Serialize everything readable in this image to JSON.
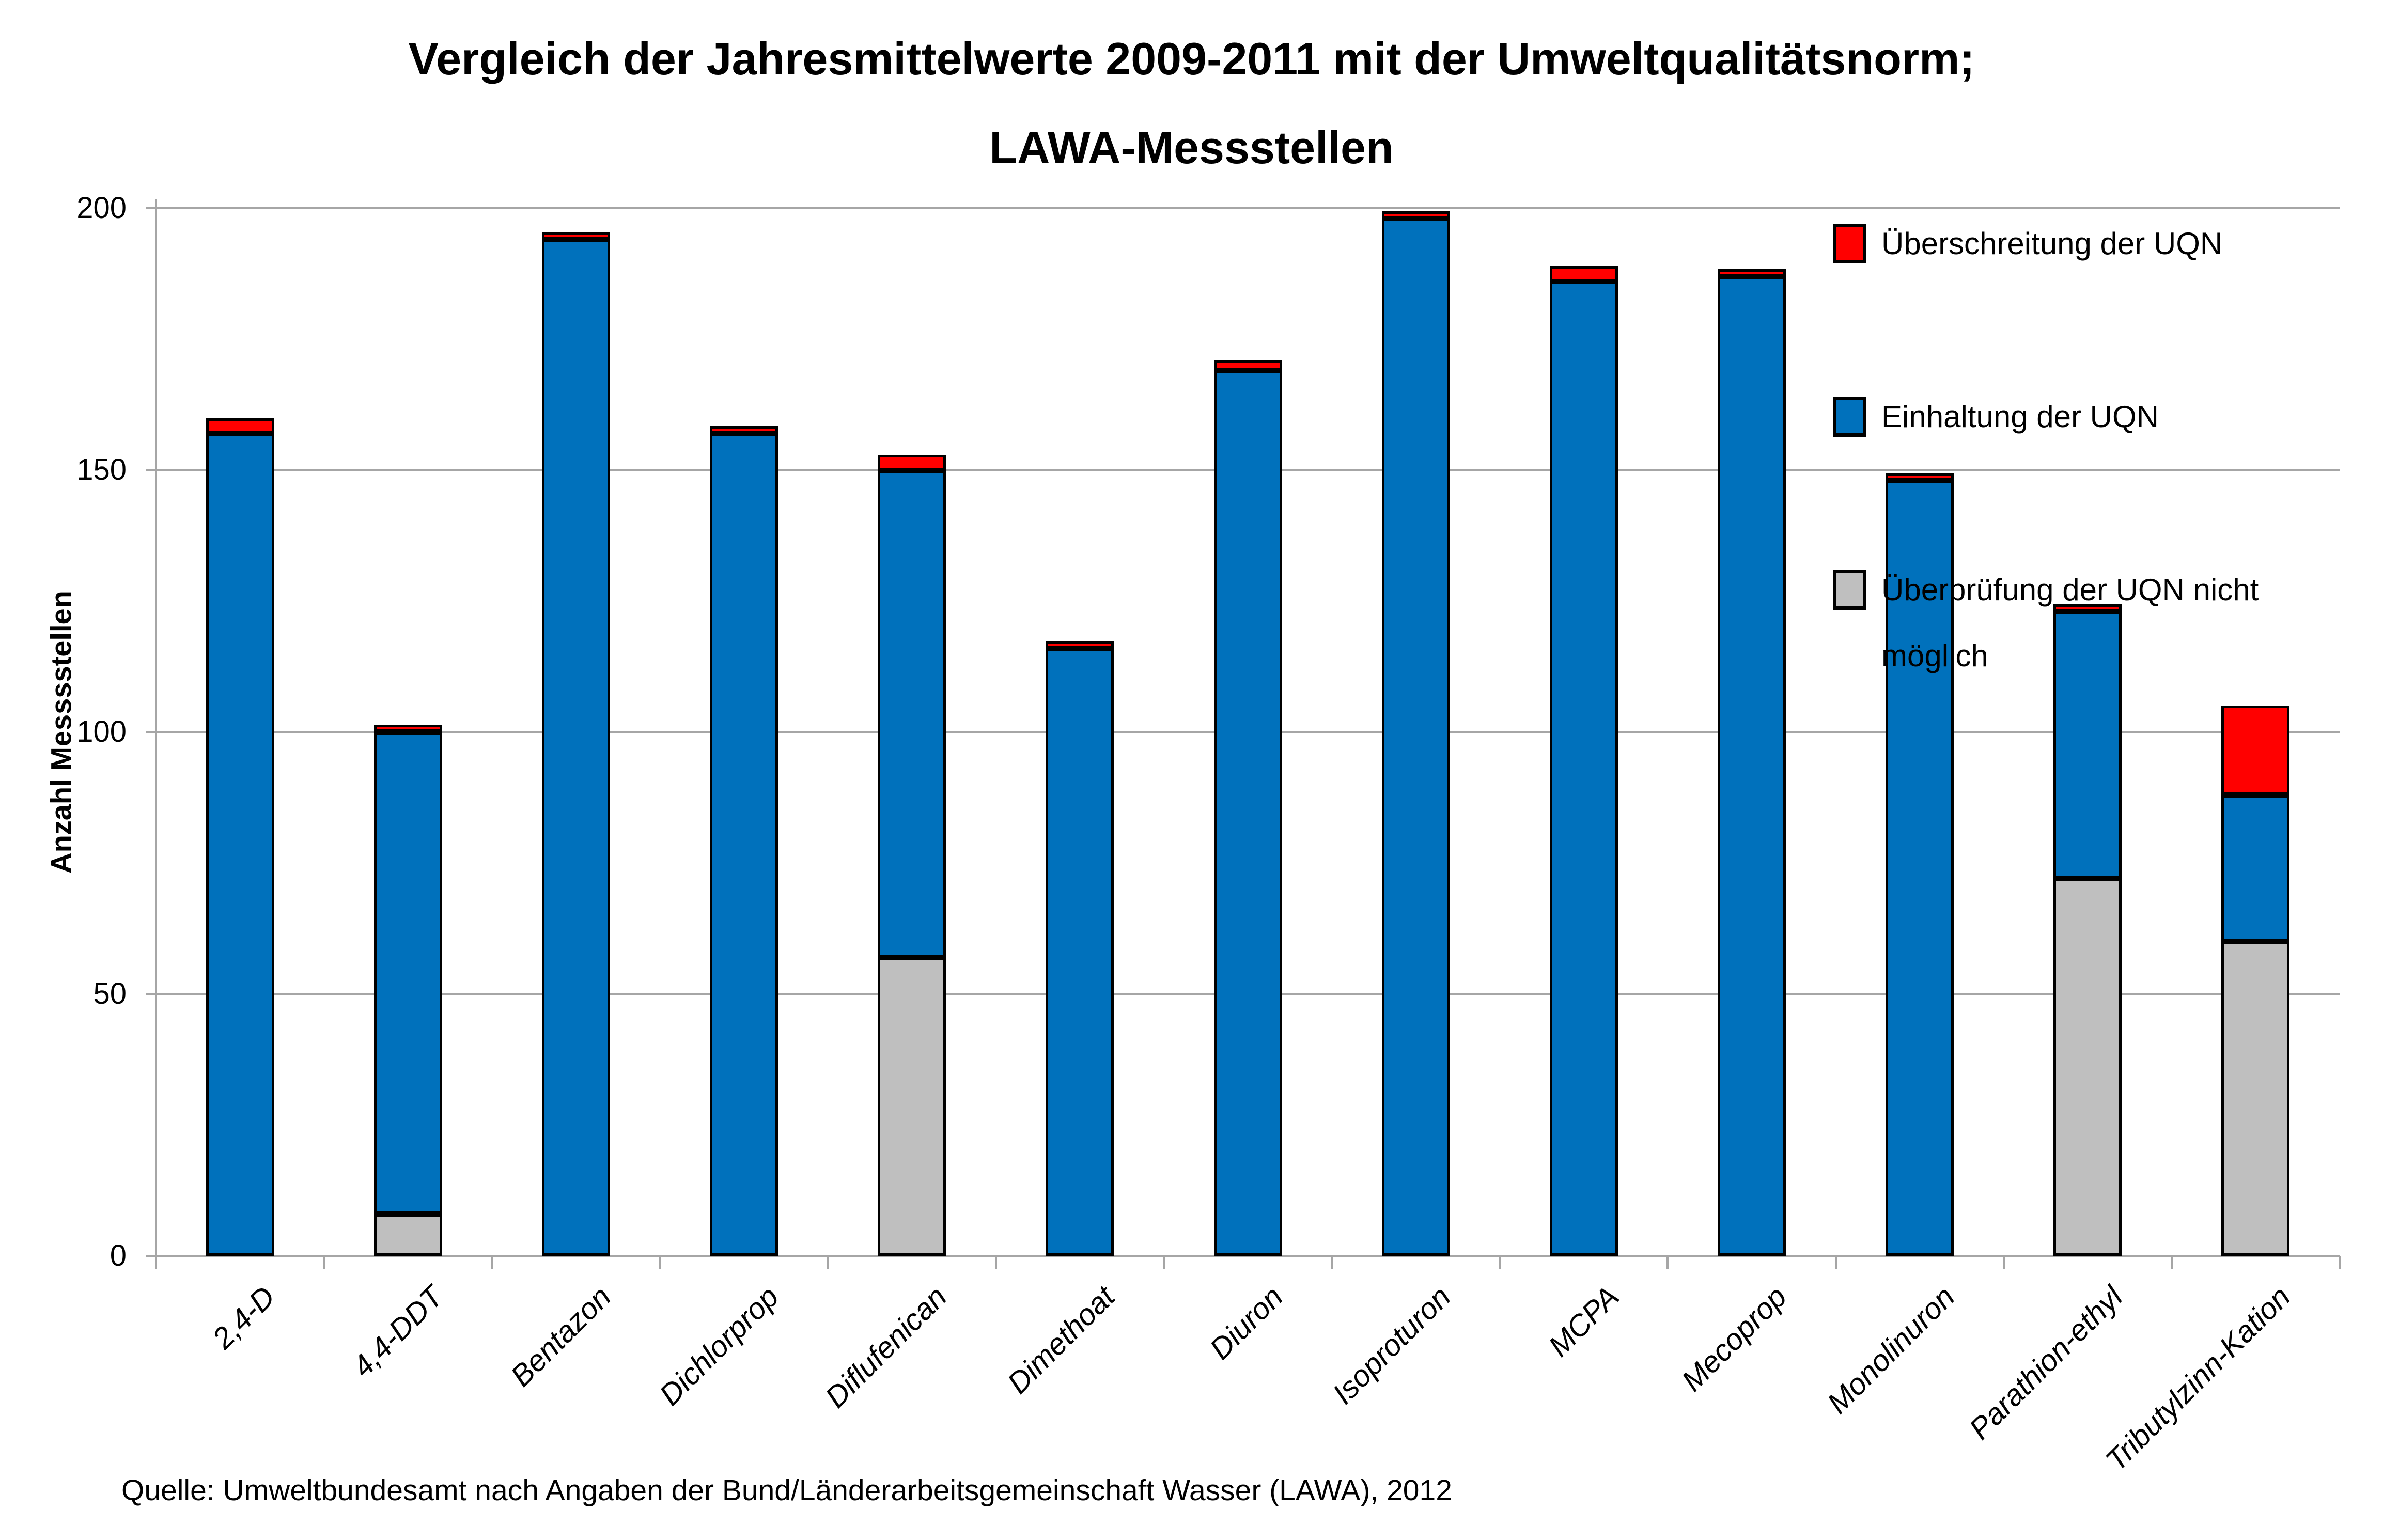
{
  "title": {
    "line1": "Vergleich der Jahresmittelwerte 2009-2011 mit der Umweltqualitätsnorm;",
    "line2": "LAWA-Messstellen"
  },
  "y_axis": {
    "label": "Anzahl Messsstellen",
    "ticks": [
      0,
      50,
      100,
      150,
      200
    ]
  },
  "legend": {
    "items": [
      {
        "label": "Überschreitung der UQN",
        "color_key": "red"
      },
      {
        "label": "Einhaltung der UQN",
        "color_key": "blue"
      },
      {
        "label": "Überprüfung der UQN nicht möglich",
        "color_key": "gray"
      }
    ]
  },
  "source": "Quelle: Umweltbundesamt nach Angaben der Bund/Länderarbeitsgemeinschaft Wasser (LAWA), 2012",
  "colors": {
    "red": "#FF0000",
    "blue": "#0071BC",
    "gray": "#BFBFBF",
    "grid": "#A6A6A6",
    "border": "#000000"
  },
  "chart_data": {
    "type": "bar",
    "stacked": true,
    "title": "Vergleich der Jahresmittelwerte 2009-2011 mit der Umweltqualitätsnorm; LAWA-Messstellen",
    "xlabel": "",
    "ylabel": "Anzahl Messsstellen",
    "ylim": [
      0,
      200
    ],
    "grid": true,
    "legend_position": "right-inside",
    "categories": [
      "2,4-D",
      "4,4-DDT",
      "Bentazon",
      "Dichlorprop",
      "Diflufenican",
      "Dimethoat",
      "Diuron",
      "Isoproturon",
      "MCPA",
      "Mecoprop",
      "Monolinuron",
      "Parathion-ethyl",
      "Tributylzinn-Kation"
    ],
    "series": [
      {
        "name": "Überprüfung der UQN nicht möglich",
        "color_key": "gray",
        "values": [
          0,
          8,
          0,
          0,
          57,
          0,
          0,
          0,
          0,
          0,
          0,
          72,
          60
        ]
      },
      {
        "name": "Einhaltung der UQN",
        "color_key": "blue",
        "values": [
          157,
          92,
          194,
          157,
          93,
          116,
          169,
          198,
          186,
          187,
          148,
          51,
          28
        ]
      },
      {
        "name": "Überschreitung der UQN",
        "color_key": "red",
        "values": [
          3,
          1,
          1,
          1,
          3,
          1,
          2,
          1,
          3,
          1,
          1,
          1,
          17
        ]
      }
    ]
  }
}
